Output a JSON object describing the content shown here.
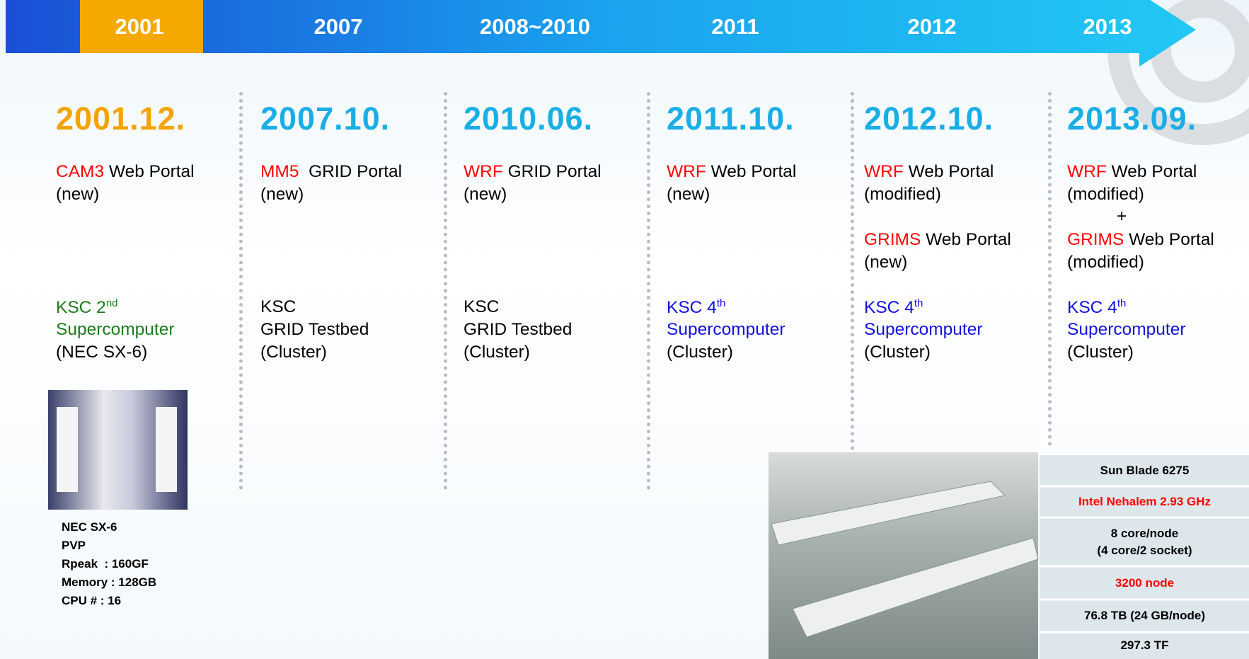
{
  "timeline": [
    "2001",
    "2007",
    "2008~2010",
    "2011",
    "2012",
    "2013"
  ],
  "columns": [
    {
      "date": "2001.12.",
      "date_color": "#f5a300",
      "portals": [
        {
          "name": "CAM3",
          "rest": " Web Portal",
          "status": "(new)"
        }
      ],
      "system": {
        "color": "#1e7b1e",
        "first": "KSC 2",
        "sup": "nd",
        "lines": [
          "Supercomputer",
          "(NEC SX-6)"
        ]
      }
    },
    {
      "date": "2007.10.",
      "date_color": "#1aaee6",
      "portals": [
        {
          "name": "MM5",
          "rest": "  GRID Portal",
          "status": "(new)"
        }
      ],
      "system": {
        "color": "#000000",
        "first": "KSC",
        "lines": [
          "GRID Testbed",
          "(Cluster)"
        ]
      }
    },
    {
      "date": "2010.06.",
      "date_color": "#1aaee6",
      "portals": [
        {
          "name": "WRF",
          "rest": " GRID Portal",
          "status": "(new)"
        }
      ],
      "system": {
        "color": "#000000",
        "first": "KSC",
        "lines": [
          "GRID Testbed",
          "(Cluster)"
        ]
      }
    },
    {
      "date": "2011.10.",
      "date_color": "#1aaee6",
      "portals": [
        {
          "name": "WRF",
          "rest": " Web Portal",
          "status": "(new)"
        }
      ],
      "system": {
        "color": "#1010e0",
        "first": "KSC 4",
        "sup": "th",
        "lines": [
          "Supercomputer",
          "(Cluster)"
        ]
      }
    },
    {
      "date": "2012.10.",
      "date_color": "#1aaee6",
      "portals": [
        {
          "name": "WRF",
          "rest": " Web Portal",
          "status": "(modified)"
        },
        {
          "name": "GRIMS",
          "rest": " Web Portal",
          "status": "(new)"
        }
      ],
      "system": {
        "color": "#1010e0",
        "first": "KSC 4",
        "sup": "th",
        "lines": [
          "Supercomputer",
          "(Cluster)"
        ]
      }
    },
    {
      "date": "2013.09.",
      "date_color": "#1aaee6",
      "portals": [
        {
          "name": "WRF",
          "rest": " Web Portal",
          "status": "(modified)"
        },
        {
          "name": "GRIMS",
          "rest": " Web Portal",
          "status": "(modified)"
        }
      ],
      "joiner": "+",
      "system": {
        "color": "#1010e0",
        "first": "KSC 4",
        "sup": "th",
        "lines": [
          "Supercomputer",
          "(Cluster)"
        ]
      }
    }
  ],
  "nec_specs": [
    "NEC SX-6",
    "PVP",
    "Rpeak  : 160GF",
    "Memory : 128GB",
    "CPU # : 16"
  ],
  "spec_table": [
    {
      "lines": [
        "Sun Blade 6275"
      ],
      "color": "#000000"
    },
    {
      "lines": [
        "Intel Nehalem 2.93 GHz"
      ],
      "color": "#ff0000"
    },
    {
      "lines": [
        "8 core/node",
        "(4 core/2 socket)"
      ],
      "color": "#000000"
    },
    {
      "lines": [
        "3200 node"
      ],
      "color": "#ff0000"
    },
    {
      "lines": [
        "76.8 TB (24 GB/node)"
      ],
      "color": "#000000"
    },
    {
      "lines": [
        "297.3 TF"
      ],
      "color": "#000000"
    }
  ]
}
